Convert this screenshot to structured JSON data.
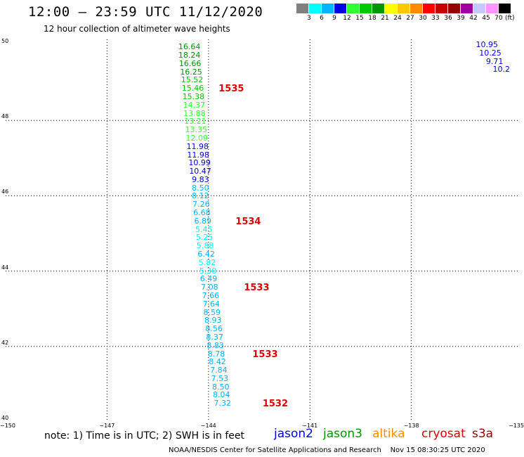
{
  "header": {
    "title": "12:00 – 23:59 UTC 11/12/2020",
    "subtitle": "12 hour collection of altimeter wave heights"
  },
  "colorbar": {
    "colors": [
      "#808080",
      "#00ffff",
      "#00b4ff",
      "#0000e6",
      "#32ff32",
      "#00c800",
      "#009600",
      "#ffff00",
      "#ffc800",
      "#ff8c00",
      "#ff0000",
      "#c80000",
      "#960000",
      "#a000a0",
      "#c8c8ff",
      "#ff96ff",
      "#000000"
    ],
    "labels": [
      "3",
      "6",
      "9",
      "12",
      "15",
      "18",
      "21",
      "24",
      "27",
      "30",
      "33",
      "36",
      "39",
      "42",
      "45",
      "70"
    ],
    "unit": "(ft)"
  },
  "chart_data": {
    "type": "scatter",
    "title": "12:00 – 23:59 UTC 11/12/2020",
    "subtitle": "12 hour collection of altimeter wave heights",
    "xlim": [
      -150,
      -135
    ],
    "ylim": [
      40,
      50
    ],
    "x_ticks": [
      "−150",
      "−147",
      "−144",
      "−141",
      "−138",
      "−135"
    ],
    "y_ticks": [
      "40",
      "42",
      "44",
      "46",
      "48",
      "50"
    ],
    "grid": true,
    "series": [
      {
        "name": "jason3",
        "points": [
          {
            "x": -144.6,
            "y": 49.94,
            "label": "16.64",
            "color": "#009600"
          },
          {
            "x": -144.6,
            "y": 49.72,
            "label": "18.24",
            "color": "#009600"
          },
          {
            "x": -144.58,
            "y": 49.5,
            "label": "16.66",
            "color": "#009600"
          },
          {
            "x": -144.55,
            "y": 49.28,
            "label": "16.25",
            "color": "#009600"
          },
          {
            "x": -144.52,
            "y": 49.06,
            "label": "15.52",
            "color": "#00c800"
          },
          {
            "x": -144.5,
            "y": 48.84,
            "label": "15.46",
            "color": "#00c800"
          },
          {
            "x": -144.48,
            "y": 48.62,
            "label": "15.38",
            "color": "#00c800"
          },
          {
            "x": -144.46,
            "y": 48.4,
            "label": "14.37",
            "color": "#32ff32"
          },
          {
            "x": -144.45,
            "y": 48.18,
            "label": "13.88",
            "color": "#32ff32"
          },
          {
            "x": -144.43,
            "y": 47.96,
            "label": "13.21",
            "color": "#32ff32"
          },
          {
            "x": -144.4,
            "y": 47.74,
            "label": "13.35",
            "color": "#32ff32"
          },
          {
            "x": -144.38,
            "y": 47.52,
            "label": "12.09",
            "color": "#32ff32"
          },
          {
            "x": -144.36,
            "y": 47.3,
            "label": "11.98",
            "color": "#0000e6"
          },
          {
            "x": -144.34,
            "y": 47.08,
            "label": "11.98",
            "color": "#0000e6"
          },
          {
            "x": -144.3,
            "y": 46.86,
            "label": "10.99",
            "color": "#0000e6"
          },
          {
            "x": -144.28,
            "y": 46.64,
            "label": "10.47",
            "color": "#0000e6"
          },
          {
            "x": -144.2,
            "y": 46.42,
            "label": "9.83",
            "color": "#0000e6"
          },
          {
            "x": -144.2,
            "y": 46.2,
            "label": "8.50",
            "color": "#00b4ff"
          },
          {
            "x": -144.2,
            "y": 45.98,
            "label": "8.12",
            "color": "#00b4ff"
          },
          {
            "x": -144.18,
            "y": 45.76,
            "label": "7.26",
            "color": "#00b4ff"
          },
          {
            "x": -144.16,
            "y": 45.54,
            "label": "6.68",
            "color": "#00b4ff"
          },
          {
            "x": -144.13,
            "y": 45.32,
            "label": "6.89",
            "color": "#00b4ff"
          },
          {
            "x": -144.1,
            "y": 45.1,
            "label": "5.45",
            "color": "#00ffff"
          },
          {
            "x": -144.08,
            "y": 44.88,
            "label": "5.25",
            "color": "#00ffff"
          },
          {
            "x": -144.06,
            "y": 44.66,
            "label": "5.88",
            "color": "#00ffff"
          },
          {
            "x": -144.03,
            "y": 44.44,
            "label": "6.42",
            "color": "#00b4ff"
          },
          {
            "x": -144.0,
            "y": 44.22,
            "label": "5.82",
            "color": "#00ffff"
          },
          {
            "x": -143.98,
            "y": 44.0,
            "label": "5.30",
            "color": "#00ffff"
          },
          {
            "x": -143.96,
            "y": 43.78,
            "label": "6.49",
            "color": "#00b4ff"
          },
          {
            "x": -143.93,
            "y": 43.56,
            "label": "7.08",
            "color": "#00b4ff"
          },
          {
            "x": -143.9,
            "y": 43.34,
            "label": "7.66",
            "color": "#00b4ff"
          },
          {
            "x": -143.88,
            "y": 43.12,
            "label": "7.64",
            "color": "#00b4ff"
          },
          {
            "x": -143.86,
            "y": 42.9,
            "label": "8.59",
            "color": "#00b4ff"
          },
          {
            "x": -143.83,
            "y": 42.68,
            "label": "8.93",
            "color": "#00b4ff"
          },
          {
            "x": -143.8,
            "y": 42.46,
            "label": "8.56",
            "color": "#00b4ff"
          },
          {
            "x": -143.78,
            "y": 42.24,
            "label": "8.37",
            "color": "#00b4ff"
          },
          {
            "x": -143.76,
            "y": 42.02,
            "label": "8.83",
            "color": "#00b4ff"
          },
          {
            "x": -143.73,
            "y": 41.8,
            "label": "8.78",
            "color": "#00b4ff"
          },
          {
            "x": -143.7,
            "y": 41.58,
            "label": "8.42",
            "color": "#00b4ff"
          },
          {
            "x": -143.66,
            "y": 41.36,
            "label": "7.84",
            "color": "#00b4ff"
          },
          {
            "x": -143.63,
            "y": 41.14,
            "label": "7.53",
            "color": "#00b4ff"
          },
          {
            "x": -143.6,
            "y": 40.92,
            "label": "8.50",
            "color": "#00b4ff"
          },
          {
            "x": -143.58,
            "y": 40.7,
            "label": "8.04",
            "color": "#00b4ff"
          },
          {
            "x": -143.55,
            "y": 40.48,
            "label": "7.32",
            "color": "#00b4ff"
          }
        ]
      },
      {
        "name": "jason2",
        "points": [
          {
            "x": -135.8,
            "y": 50.0,
            "label": "10.95",
            "color": "#0000e6"
          },
          {
            "x": -135.7,
            "y": 49.78,
            "label": "10.25",
            "color": "#0000e6"
          },
          {
            "x": -135.5,
            "y": 49.56,
            "label": "9.71",
            "color": "#0000e6"
          },
          {
            "x": -135.3,
            "y": 49.34,
            "label": "10.2",
            "color": "#0000e6"
          }
        ]
      }
    ],
    "pass_labels": [
      {
        "x": -143.7,
        "y": 48.84,
        "label": "1535"
      },
      {
        "x": -143.2,
        "y": 45.32,
        "label": "1534"
      },
      {
        "x": -142.95,
        "y": 43.56,
        "label": "1533"
      },
      {
        "x": -142.7,
        "y": 41.8,
        "label": "1533"
      },
      {
        "x": -142.4,
        "y": 40.48,
        "label": "1532"
      }
    ]
  },
  "note": "note: 1) Time is in UTC; 2) SWH is in feet",
  "satellites": [
    {
      "name": "jason2",
      "color": "#0000e6"
    },
    {
      "name": "jason3",
      "color": "#009600"
    },
    {
      "name": "altika",
      "color": "#ff8c00"
    },
    {
      "name": "cryosat",
      "color": "#e00000"
    },
    {
      "name": "s3a",
      "color": "#960000"
    }
  ],
  "footer": "NOAA/NESDIS Center for Satellite Applications and Research    Nov 15 08:30:25 UTC 2020"
}
